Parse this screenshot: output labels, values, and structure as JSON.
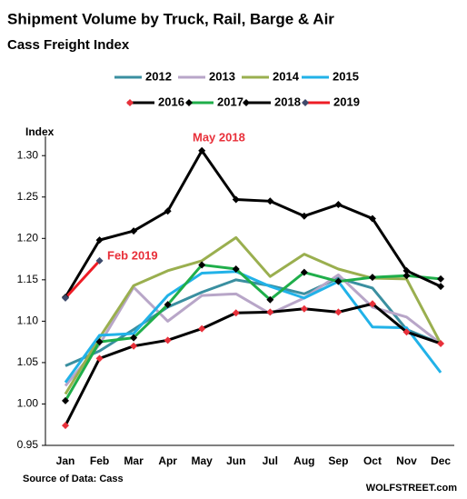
{
  "chart_data": {
    "type": "line",
    "title": "Shipment Volume by Truck, Rail, Barge & Air",
    "subtitle": "Cass Freight Index",
    "y_axis_label": "Index",
    "source": "Source of Data: Cass",
    "credit": "WOLFSTREET.com",
    "annotations": [
      "May 2018",
      "Feb 2019"
    ],
    "annotation_color": "#e8303a",
    "categories": [
      "Jan",
      "Feb",
      "Mar",
      "Apr",
      "May",
      "Jun",
      "Jul",
      "Aug",
      "Sep",
      "Oct",
      "Nov",
      "Dec"
    ],
    "ylim": [
      0.95,
      1.32
    ],
    "yticks": [
      0.95,
      {
        "value": 1.0,
        "label": "1.00"
      },
      1.05,
      {
        "value": 1.1,
        "label": "1.10"
      },
      1.15,
      {
        "value": 1.2,
        "label": "1.20"
      },
      1.25,
      {
        "value": 1.3,
        "label": "1.30"
      }
    ],
    "grid": false,
    "legend": "top",
    "series": [
      {
        "name": "2012",
        "color": "#3a8fa0",
        "values": [
          1.046,
          1.064,
          1.09,
          1.117,
          1.135,
          1.15,
          1.143,
          1.133,
          1.152,
          1.14,
          1.09,
          1.073
        ]
      },
      {
        "name": "2013",
        "color": "#b8a6c8",
        "values": [
          1.022,
          1.072,
          1.141,
          1.1,
          1.131,
          1.133,
          1.109,
          1.128,
          1.156,
          1.117,
          1.105,
          1.073
        ]
      },
      {
        "name": "2014",
        "color": "#9aaf4f",
        "values": [
          1.012,
          1.08,
          1.143,
          1.161,
          1.173,
          1.201,
          1.154,
          1.181,
          1.163,
          1.152,
          1.151,
          1.073
        ]
      },
      {
        "name": "2015",
        "color": "#21b2e8",
        "values": [
          1.026,
          1.083,
          1.085,
          1.131,
          1.158,
          1.16,
          1.142,
          1.128,
          1.148,
          1.093,
          1.092,
          1.038
        ]
      },
      {
        "name": "2016",
        "color": "#000000",
        "marker_color": "#e8303a",
        "values": [
          0.974,
          1.055,
          1.07,
          1.077,
          1.091,
          1.11,
          1.111,
          1.115,
          1.111,
          1.121,
          1.087,
          1.073
        ]
      },
      {
        "name": "2017",
        "color": "#1fae4a",
        "marker_color": "#000000",
        "values": [
          1.004,
          1.075,
          1.08,
          1.12,
          1.168,
          1.163,
          1.126,
          1.159,
          1.148,
          1.153,
          1.155,
          1.151
        ]
      },
      {
        "name": "2018",
        "color": "#000000",
        "marker_color": "#000000",
        "values": [
          1.129,
          1.198,
          1.209,
          1.233,
          1.306,
          1.247,
          1.245,
          1.227,
          1.241,
          1.224,
          1.161,
          1.142
        ]
      },
      {
        "name": "2019",
        "color": "#ee1c25",
        "marker_color": "#3d4a6b",
        "values": [
          1.128,
          1.173,
          null,
          null,
          null,
          null,
          null,
          null,
          null,
          null,
          null,
          null
        ]
      }
    ]
  }
}
